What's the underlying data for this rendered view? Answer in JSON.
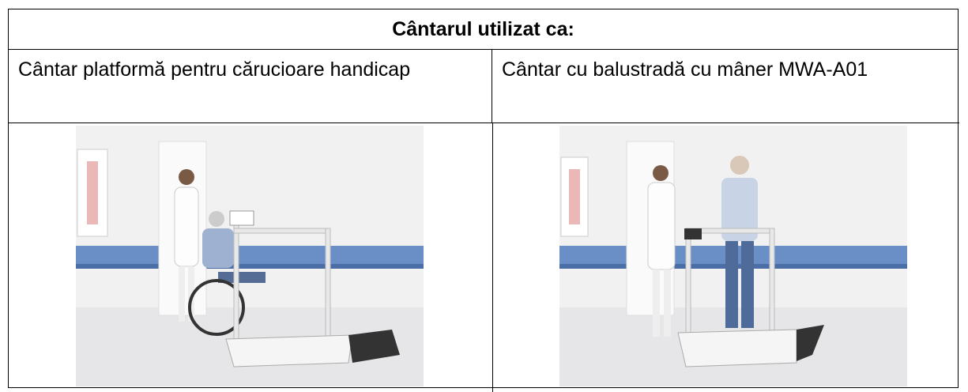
{
  "table": {
    "title": "Cântarul utilizat ca:",
    "rows": [
      [
        "Cântar platformă pentru cărucioare handicap",
        "Cântar cu balustradă cu mâner MWA-A01"
      ]
    ]
  }
}
